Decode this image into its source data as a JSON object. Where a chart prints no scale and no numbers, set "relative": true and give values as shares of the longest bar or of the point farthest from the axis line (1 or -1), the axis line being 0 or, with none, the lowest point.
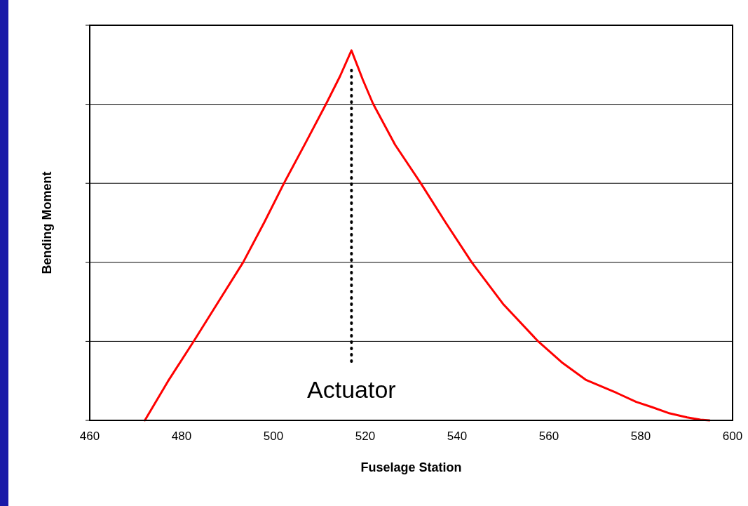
{
  "chart_data": {
    "type": "line",
    "relative": true,
    "xlabel": "Fuselage Station",
    "ylabel": "Bending Moment",
    "xlim": [
      460,
      600
    ],
    "xticks": [
      460,
      480,
      500,
      520,
      540,
      560,
      580,
      600
    ],
    "grid": "y",
    "line_style": "solid",
    "series": [
      {
        "color": "#ff0000",
        "x": [
          472,
          477,
          482.6,
          488,
          493.4,
          498,
          502.3,
          507,
          511.5,
          514.5,
          517,
          519.5,
          521.7,
          526.5,
          532.1,
          537.5,
          543.2,
          550,
          557.7,
          563,
          568,
          574.8,
          579,
          582.4,
          586,
          590.1,
          593,
          595
        ],
        "values": [
          0,
          0.105,
          0.213,
          0.32,
          0.427,
          0.535,
          0.641,
          0.75,
          0.856,
          0.93,
          1,
          0.92,
          0.856,
          0.745,
          0.641,
          0.535,
          0.427,
          0.315,
          0.213,
          0.155,
          0.11,
          0.074,
          0.05,
          0.036,
          0.02,
          0.008,
          0.002,
          0
        ]
      }
    ],
    "ref_lines": [
      {
        "axis": "x",
        "value": 517,
        "label": "Actuator",
        "color": "#000000",
        "line_style": "dotted"
      }
    ]
  }
}
